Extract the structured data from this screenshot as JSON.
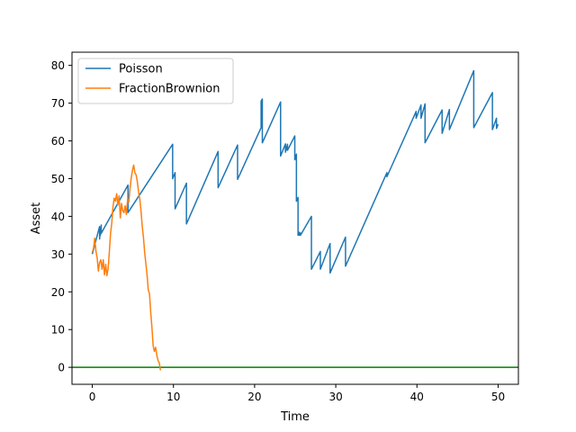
{
  "chart_data": {
    "type": "line",
    "title": "",
    "xlabel": "Time",
    "ylabel": "Asset",
    "xlim": [
      -2.5,
      52.5
    ],
    "ylim": [
      -4.5,
      83.5
    ],
    "xticks": [
      0,
      10,
      20,
      30,
      40,
      50
    ],
    "yticks": [
      0,
      10,
      20,
      30,
      40,
      50,
      60,
      70,
      80
    ],
    "grid": false,
    "legend_position": "top-left",
    "hline": {
      "y": 0,
      "color": "#008000"
    },
    "series": [
      {
        "name": "Poisson",
        "color": "#1f77b4",
        "x": [
          0,
          0.9,
          0.9,
          1.0,
          1.0,
          1.1,
          1.1,
          4.4,
          4.4,
          9.9,
          9.9,
          10.2,
          10.2,
          11.6,
          11.6,
          15.5,
          15.5,
          17.9,
          17.9,
          20.8,
          20.8,
          20.95,
          20.95,
          23.2,
          23.2,
          23.8,
          23.8,
          24.05,
          24.05,
          24.95,
          24.95,
          25.15,
          25.15,
          25.35,
          25.35,
          25.5,
          25.5,
          25.65,
          25.65,
          27.0,
          27.0,
          28.1,
          28.1,
          29.3,
          29.3,
          31.2,
          31.2,
          36.3,
          36.3,
          39.9,
          39.9,
          40.5,
          40.5,
          41.0,
          41.0,
          43.1,
          43.1,
          44.0,
          44.0,
          47.0,
          47.0,
          49.3,
          49.3,
          49.8,
          49.8,
          50.0
        ],
        "y": [
          30,
          37.3,
          34,
          36.6,
          35,
          37.7,
          35.5,
          48.3,
          41,
          59.1,
          50,
          51.6,
          42,
          48.8,
          38,
          57.2,
          47.6,
          58.9,
          49.8,
          63.5,
          70.5,
          71.1,
          59.5,
          70.3,
          56,
          59.2,
          57,
          59.1,
          57.5,
          61.3,
          55,
          56.5,
          44,
          45,
          35,
          35.8,
          35,
          35.6,
          35,
          40,
          26,
          30.7,
          26,
          32.8,
          25,
          34.5,
          26.8,
          51.6,
          50.5,
          67.8,
          66,
          69.5,
          66,
          69.8,
          59.5,
          68.2,
          62,
          68.3,
          63,
          78.6,
          63.5,
          72.8,
          63,
          66,
          63.3,
          64.4
        ]
      },
      {
        "name": "FractionBrownion",
        "color": "#ff7f0e",
        "x": [
          0,
          0.15,
          0.3,
          0.45,
          0.6,
          0.75,
          0.9,
          1.05,
          1.2,
          1.35,
          1.5,
          1.65,
          1.8,
          1.95,
          2.1,
          2.25,
          2.4,
          2.55,
          2.7,
          2.85,
          3.0,
          3.15,
          3.3,
          3.45,
          3.6,
          3.75,
          3.9,
          4.05,
          4.2,
          4.35,
          4.5,
          4.65,
          4.8,
          4.95,
          5.1,
          5.25,
          5.4,
          5.55,
          5.7,
          5.85,
          6.0,
          6.15,
          6.3,
          6.45,
          6.6,
          6.75,
          6.9,
          7.05,
          7.2,
          7.35,
          7.5,
          7.65,
          7.8,
          7.95,
          8.1,
          8.25,
          8.4
        ],
        "y": [
          30.5,
          31.5,
          34.2,
          30.8,
          29,
          25.5,
          27.8,
          28.5,
          26,
          28.5,
          24.5,
          27.3,
          24.3,
          26.2,
          30.5,
          35.5,
          38.2,
          42.5,
          44.8,
          44,
          46,
          43,
          45.4,
          39.6,
          43.4,
          41.5,
          41,
          42.8,
          40.5,
          44.5,
          43.8,
          47.5,
          50.2,
          52.2,
          53.6,
          51.5,
          51,
          49.2,
          46.5,
          44.7,
          41.5,
          37.5,
          34.5,
          30.5,
          27.5,
          24.5,
          20.5,
          19.5,
          14.5,
          10.5,
          5.7,
          4.2,
          5.3,
          3.2,
          1.8,
          1.2,
          -0.8
        ]
      }
    ]
  }
}
